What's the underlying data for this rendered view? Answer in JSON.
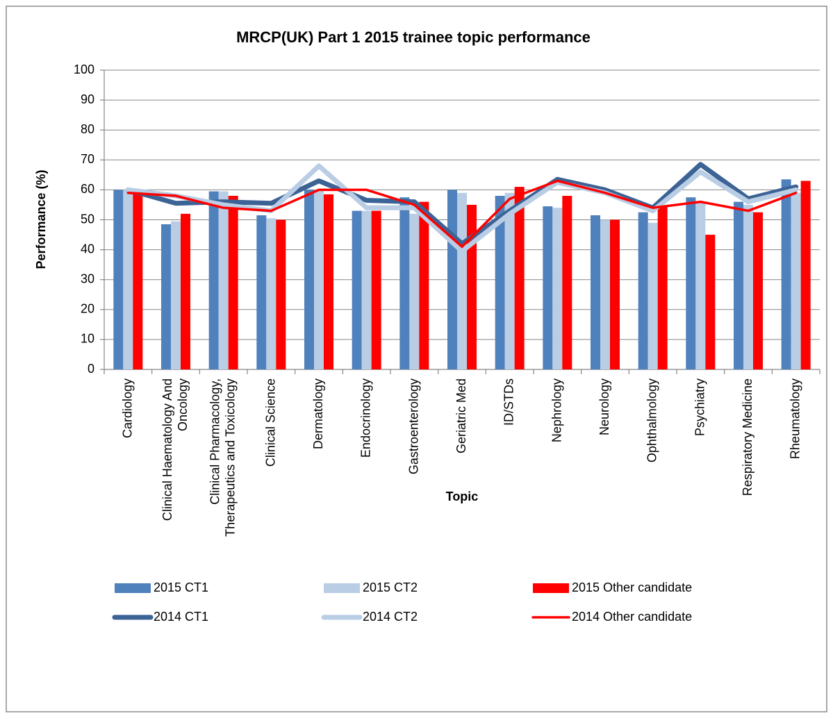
{
  "chart_data": {
    "type": "bar",
    "title": "MRCP(UK) Part 1 2015 trainee topic performance",
    "x_label": "Topic",
    "y_label": "Performance (%)",
    "categories": [
      "Cardiology",
      "Clinical Haematology And Oncology",
      "Clinical Pharmacology, Therapeutics and Toxicology",
      "Clinical Science",
      "Dermatology",
      "Endocrinology",
      "Gastroenterology",
      "Geriatric Med",
      "ID/STDs",
      "Nephrology",
      "Neurology",
      "Ophthalmology",
      "Psychiatry",
      "Respiratory Medicine",
      "Rheumatology"
    ],
    "series": [
      {
        "name": "2015 CT1",
        "type": "bar",
        "color": "#4f81bd",
        "values": [
          60,
          48.5,
          59.5,
          51.5,
          60,
          53,
          57.5,
          60,
          58,
          54.5,
          51.5,
          52.5,
          57.5,
          56,
          63.5
        ]
      },
      {
        "name": "2015 CT2",
        "type": "bar",
        "color": "#b9cde5",
        "values": [
          60,
          49.5,
          59.5,
          50.5,
          60,
          53,
          52,
          59,
          59,
          54,
          50,
          49,
          56,
          55,
          59
        ]
      },
      {
        "name": "2015 Other candidate",
        "type": "bar",
        "color": "#ff0000",
        "values": [
          58.5,
          52,
          58,
          50,
          58.5,
          53,
          56,
          55,
          61,
          58,
          50,
          54.5,
          45,
          52.5,
          63
        ]
      },
      {
        "name": "2014 CT1",
        "type": "line",
        "color": "#3c6395",
        "values": [
          60,
          55.5,
          56,
          55.5,
          63,
          56.5,
          56,
          42,
          53,
          63.5,
          60,
          54,
          68.5,
          57,
          61
        ]
      },
      {
        "name": "2014 CT2",
        "type": "line",
        "color": "#b9cde5",
        "values": [
          60,
          58,
          55,
          53,
          68,
          54,
          54,
          39.5,
          52,
          62.5,
          59,
          53,
          66,
          56,
          60
        ]
      },
      {
        "name": "2014 Other candidate",
        "type": "line",
        "color": "#ff0000",
        "values": [
          59,
          58,
          54,
          53,
          60,
          60,
          55,
          41,
          57,
          63,
          59,
          54,
          56,
          53,
          59
        ]
      }
    ],
    "ylim": [
      0,
      100
    ],
    "yticks": [
      0,
      10,
      20,
      30,
      40,
      50,
      60,
      70,
      80,
      90,
      100
    ],
    "grid": true
  }
}
